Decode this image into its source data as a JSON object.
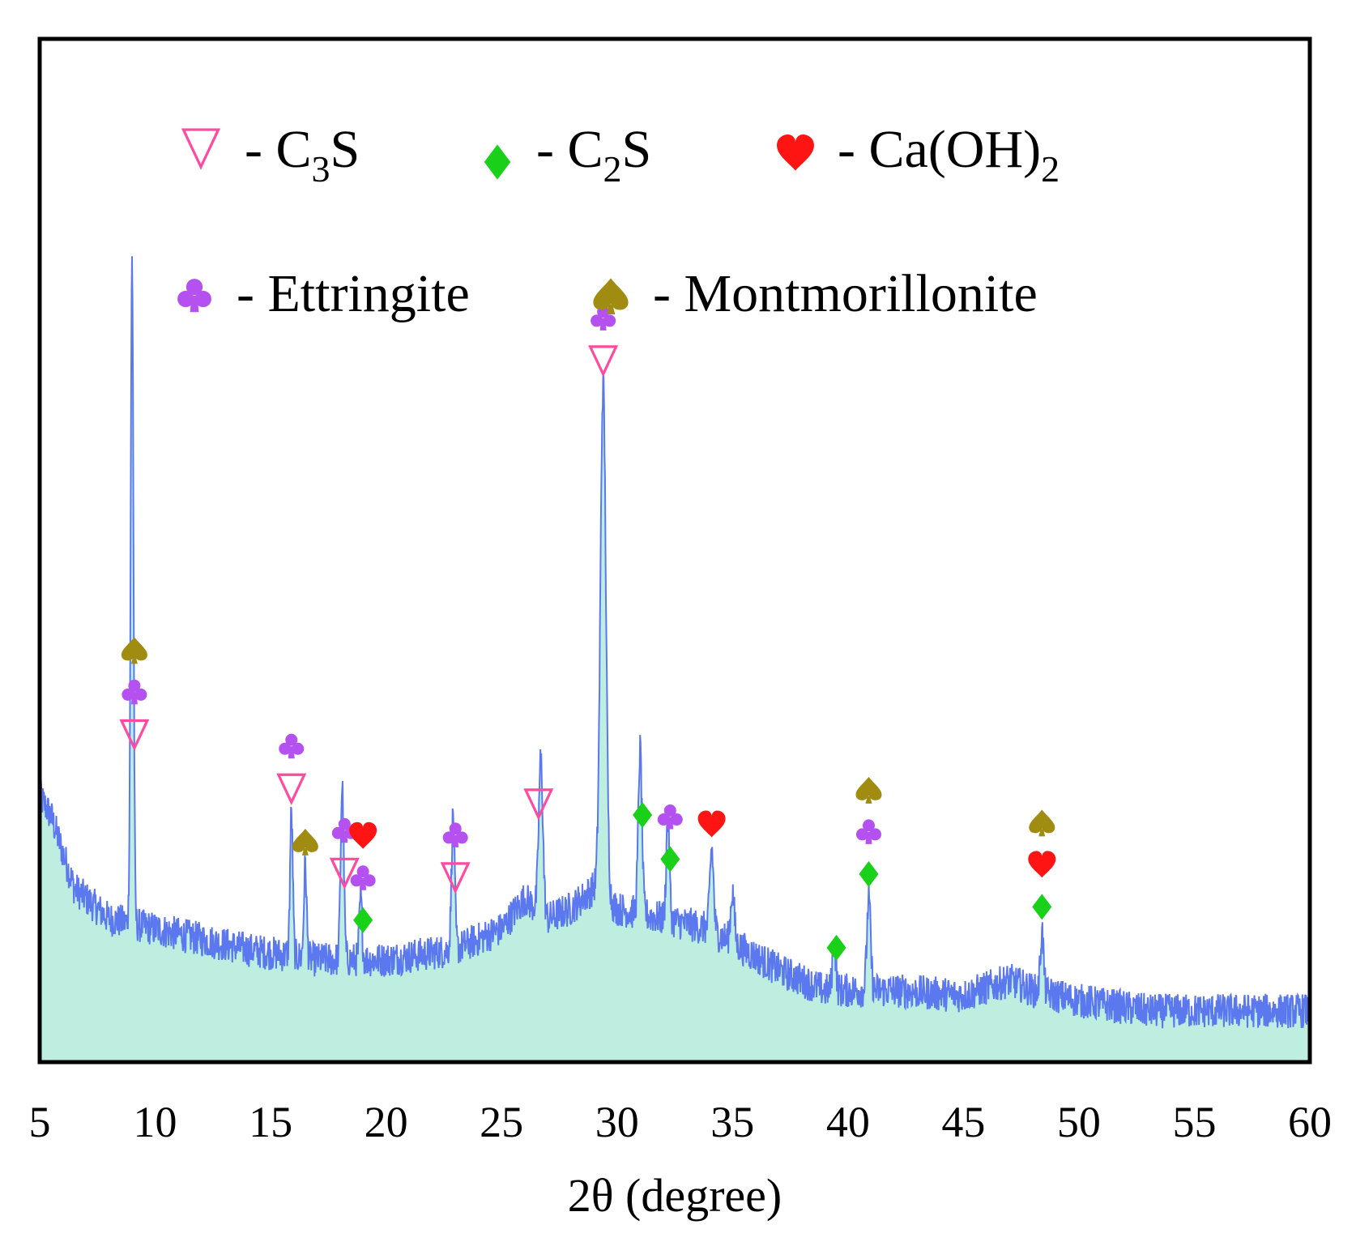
{
  "chart_data": {
    "type": "line",
    "title": "",
    "xlabel": "2θ (degree)",
    "ylabel": "",
    "xlim": [
      5,
      60
    ],
    "ylim": [
      0,
      100
    ],
    "xticks": [
      "5",
      "10",
      "15",
      "20",
      "25",
      "30",
      "35",
      "40",
      "45",
      "50",
      "55",
      "60"
    ],
    "colors": {
      "line": "#5b78ee",
      "fill": "#bdeee0",
      "c3s": "#ff4aa0",
      "c2s": "#19d119",
      "caoh2": "#ff1414",
      "ettringite": "#b451f0",
      "montmorillonite": "#a08c10"
    },
    "legend": [
      {
        "phase": "c3s",
        "icon": "triangle-down-outline-icon",
        "dash": "-",
        "label": "C",
        "sub": "3",
        "tail": "S"
      },
      {
        "phase": "c2s",
        "icon": "diamond-icon",
        "dash": "-",
        "label": "C",
        "sub": "2",
        "tail": "S"
      },
      {
        "phase": "caoh2",
        "icon": "heart-icon",
        "dash": "-",
        "label": "Ca(OH)",
        "sub": "2",
        "tail": ""
      },
      {
        "phase": "ettringite",
        "icon": "club-icon",
        "dash": "-",
        "label": "Ettringite",
        "sub": "",
        "tail": ""
      },
      {
        "phase": "montmorillonite",
        "icon": "spade-icon",
        "dash": "-",
        "label": "Montmorillonite",
        "sub": "",
        "tail": ""
      }
    ],
    "baseline": [
      [
        5.0,
        26
      ],
      [
        5.5,
        24
      ],
      [
        6.5,
        17
      ],
      [
        8,
        14
      ],
      [
        10,
        13
      ],
      [
        14,
        11
      ],
      [
        17,
        10
      ],
      [
        20,
        10
      ],
      [
        23,
        11
      ],
      [
        25,
        13
      ],
      [
        26,
        16
      ],
      [
        27,
        14
      ],
      [
        28,
        15
      ],
      [
        29,
        17
      ],
      [
        30,
        15
      ],
      [
        32,
        14
      ],
      [
        34,
        13
      ],
      [
        35.5,
        11
      ],
      [
        37,
        9
      ],
      [
        39,
        7
      ],
      [
        42,
        7
      ],
      [
        45,
        6.5
      ],
      [
        47,
        8
      ],
      [
        48,
        7
      ],
      [
        50,
        6
      ],
      [
        53,
        5
      ],
      [
        56,
        5
      ],
      [
        60,
        5
      ]
    ],
    "peaks": [
      {
        "x": 9.0,
        "height": 65,
        "width": 0.06
      },
      {
        "x": 15.9,
        "height": 14,
        "width": 0.06
      },
      {
        "x": 16.5,
        "height": 9,
        "width": 0.06
      },
      {
        "x": 18.1,
        "height": 17,
        "width": 0.07
      },
      {
        "x": 18.9,
        "height": 6,
        "width": 0.06
      },
      {
        "x": 22.9,
        "height": 13,
        "width": 0.07
      },
      {
        "x": 26.7,
        "height": 15,
        "width": 0.09
      },
      {
        "x": 29.4,
        "height": 50,
        "width": 0.12
      },
      {
        "x": 31.0,
        "height": 16,
        "width": 0.08
      },
      {
        "x": 32.2,
        "height": 10,
        "width": 0.07
      },
      {
        "x": 34.1,
        "height": 8,
        "width": 0.08
      },
      {
        "x": 35.0,
        "height": 5,
        "width": 0.08
      },
      {
        "x": 39.4,
        "height": 5,
        "width": 0.07
      },
      {
        "x": 40.9,
        "height": 9,
        "width": 0.08
      },
      {
        "x": 48.4,
        "height": 6,
        "width": 0.07
      }
    ],
    "markers": [
      {
        "x": 9.1,
        "stack": [
          "c3s",
          "ettringite",
          "montmorillonite"
        ]
      },
      {
        "x": 15.9,
        "stack": [
          "c3s",
          "ettringite"
        ]
      },
      {
        "x": 16.5,
        "stack": [
          "montmorillonite"
        ]
      },
      {
        "x": 18.2,
        "stack": [
          "c3s",
          "ettringite"
        ]
      },
      {
        "x": 19.0,
        "stack": [
          "c2s",
          "ettringite",
          "caoh2"
        ]
      },
      {
        "x": 23.0,
        "stack": [
          "c3s",
          "ettringite"
        ]
      },
      {
        "x": 26.6,
        "stack": [
          "c3s"
        ]
      },
      {
        "x": 29.4,
        "stack": [
          "c3s",
          "ettringite"
        ]
      },
      {
        "x": 31.1,
        "stack": [
          "c2s"
        ]
      },
      {
        "x": 32.3,
        "stack": [
          "c2s",
          "ettringite"
        ]
      },
      {
        "x": 34.1,
        "stack": [
          "caoh2"
        ]
      },
      {
        "x": 39.5,
        "stack": [
          "c2s"
        ]
      },
      {
        "x": 40.9,
        "stack": [
          "c2s",
          "ettringite",
          "montmorillonite"
        ]
      },
      {
        "x": 48.4,
        "stack": [
          "c2s",
          "caoh2",
          "montmorillonite"
        ]
      }
    ]
  }
}
